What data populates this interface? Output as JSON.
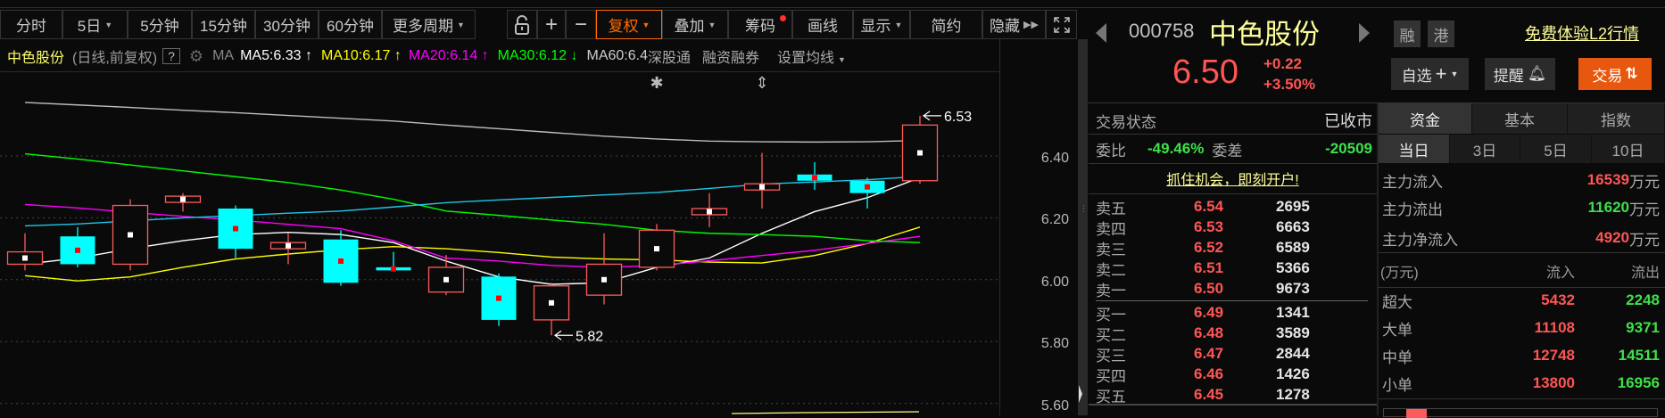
{
  "toolbar": {
    "periods": [
      "分时",
      "5日",
      "5分钟",
      "15分钟",
      "30分钟",
      "60分钟",
      "更多周期"
    ],
    "tools": {
      "plus": "+",
      "minus": "−",
      "fuquan": "复权",
      "overlay": "叠加",
      "chips": "筹码",
      "draw": "画线",
      "display": "显示",
      "simple": "简约",
      "hide": "隐藏"
    }
  },
  "legend": {
    "name": "中色股份",
    "mode": "(日线,前复权)",
    "help": "?",
    "ma": "MA",
    "ma5": "MA5:6.33 ↑",
    "ma10": "MA10:6.17 ↑",
    "ma20": "MA20:6.14 ↑",
    "ma30": "MA30:6.12 ↓",
    "ma60": "MA60:6.4",
    "sgt": "深股通",
    "margin": "融资融券",
    "set_ma": "设置均线"
  },
  "colors": {
    "up": "#ff5a5a",
    "down": "#00ffff",
    "ma5": "#ffffff",
    "ma10": "#ffff00",
    "ma20": "#ff00ff",
    "ma30": "#00ff00",
    "ma60": "#bdbdbd",
    "extra": "#1ec8e8",
    "accent": "#ff6a00",
    "trade": "#e8570e"
  },
  "chart_data": {
    "type": "candlestick",
    "yticks": [
      "6.40",
      "6.20",
      "6.00",
      "5.80",
      "5.60"
    ],
    "ylim": [
      5.56,
      6.62
    ],
    "ohlc": [
      [
        6.05,
        6.15,
        6.03,
        6.09
      ],
      [
        6.14,
        6.17,
        6.04,
        6.05
      ],
      [
        6.05,
        6.26,
        6.03,
        6.24
      ],
      [
        6.25,
        6.28,
        6.22,
        6.27
      ],
      [
        6.23,
        6.24,
        6.07,
        6.1
      ],
      [
        6.1,
        6.15,
        6.05,
        6.12
      ],
      [
        6.13,
        6.16,
        5.98,
        5.99
      ],
      [
        6.04,
        6.09,
        6.03,
        6.03
      ],
      [
        5.96,
        6.08,
        5.95,
        6.04
      ],
      [
        6.01,
        6.02,
        5.85,
        5.87
      ],
      [
        5.87,
        5.99,
        5.82,
        5.98
      ],
      [
        5.95,
        6.15,
        5.92,
        6.05
      ],
      [
        6.04,
        6.18,
        6.03,
        6.16
      ],
      [
        6.21,
        6.28,
        6.17,
        6.23
      ],
      [
        6.29,
        6.41,
        6.23,
        6.31
      ],
      [
        6.34,
        6.38,
        6.29,
        6.32
      ],
      [
        6.32,
        6.33,
        6.23,
        6.28
      ],
      [
        6.32,
        6.53,
        6.31,
        6.5
      ]
    ],
    "series": [
      {
        "name": "MA5",
        "key": "ma5",
        "values": [
          6.05,
          6.07,
          6.1,
          6.126,
          6.146,
          6.153,
          6.146,
          6.12,
          6.06,
          6.009,
          5.985,
          5.99,
          6.04,
          6.07,
          6.15,
          6.22,
          6.265,
          6.33
        ]
      },
      {
        "name": "MA10",
        "key": "ma10",
        "values": [
          6.013,
          5.996,
          6.009,
          6.04,
          6.067,
          6.083,
          6.097,
          6.107,
          6.1,
          6.088,
          6.073,
          6.067,
          6.064,
          6.057,
          6.054,
          6.078,
          6.117,
          6.17
        ]
      },
      {
        "name": "MA20",
        "key": "ma20",
        "values": [
          6.243,
          6.232,
          6.218,
          6.205,
          6.193,
          6.179,
          6.165,
          6.126,
          6.07,
          6.06,
          6.046,
          6.04,
          6.046,
          6.061,
          6.078,
          6.095,
          6.117,
          6.14
        ]
      },
      {
        "name": "MA30",
        "key": "ma30",
        "values": [
          6.407,
          6.39,
          6.371,
          6.352,
          6.333,
          6.314,
          6.29,
          6.26,
          6.222,
          6.208,
          6.193,
          6.179,
          6.16,
          6.15,
          6.146,
          6.14,
          6.126,
          6.12
        ]
      },
      {
        "name": "MA60",
        "key": "ma60",
        "values": [
          6.573,
          6.565,
          6.557,
          6.548,
          6.54,
          6.531,
          6.522,
          6.513,
          6.5,
          6.488,
          6.476,
          6.464,
          6.455,
          6.448,
          6.446,
          6.445,
          6.446,
          6.45
        ]
      },
      {
        "key": "extra",
        "values": [
          6.174,
          6.18,
          6.19,
          6.2,
          6.207,
          6.215,
          6.222,
          6.235,
          6.249,
          6.258,
          6.266,
          6.274,
          6.282,
          6.295,
          6.309,
          6.316,
          6.323,
          6.334
        ]
      }
    ],
    "annotations": {
      "high": "6.53",
      "low": "5.82",
      "high_price": 6.53,
      "low_price": 5.82,
      "high_index": 17,
      "low_index": 10
    },
    "markers": [
      {
        "index": 12,
        "symbol": "✱"
      },
      {
        "index": 14,
        "symbol": "⇕"
      }
    ]
  },
  "quote": {
    "code": "000758",
    "name": "中色股份",
    "tag_margin": "融",
    "tag_hk": "港",
    "l2_link": "免费体验L2行情",
    "price": "6.50",
    "change": "+0.22",
    "change_pct": "+3.50%",
    "watch": "自选",
    "alert": "提醒",
    "trade": "交易"
  },
  "orderbook": {
    "status_label": "交易状态",
    "status": "已收市",
    "ratio_label": "委比",
    "ratio": "-49.46%",
    "diff_label": "委差",
    "diff": "-20509",
    "promo": "抓住机会，即刻开户!",
    "asks": [
      {
        "l": "卖五",
        "p": "6.54",
        "v": "2695"
      },
      {
        "l": "卖四",
        "p": "6.53",
        "v": "6663"
      },
      {
        "l": "卖三",
        "p": "6.52",
        "v": "6589"
      },
      {
        "l": "卖二",
        "p": "6.51",
        "v": "5366"
      },
      {
        "l": "卖一",
        "p": "6.50",
        "v": "9673"
      }
    ],
    "bids": [
      {
        "l": "买一",
        "p": "6.49",
        "v": "1341"
      },
      {
        "l": "买二",
        "p": "6.48",
        "v": "3589"
      },
      {
        "l": "买三",
        "p": "6.47",
        "v": "2844"
      },
      {
        "l": "买四",
        "p": "6.46",
        "v": "1426"
      },
      {
        "l": "买五",
        "p": "6.45",
        "v": "1278"
      }
    ]
  },
  "funds": {
    "tabs": [
      "资金",
      "基本",
      "指数"
    ],
    "periods": [
      "当日",
      "3日",
      "5日",
      "10日"
    ],
    "main": [
      {
        "l": "主力流入",
        "v": "16539",
        "u": "万元",
        "c": "red"
      },
      {
        "l": "主力流出",
        "v": "11620",
        "u": "万元",
        "c": "grn"
      },
      {
        "l": "主力净流入",
        "v": "4920",
        "u": "万元",
        "c": "red"
      }
    ],
    "head": [
      "(万元)",
      "流入",
      "流出"
    ],
    "rows": [
      {
        "l": "超大",
        "in": "5432",
        "out": "2248"
      },
      {
        "l": "大单",
        "in": "11108",
        "out": "9371"
      },
      {
        "l": "中单",
        "in": "12748",
        "out": "14511"
      },
      {
        "l": "小单",
        "in": "13800",
        "out": "16956"
      }
    ]
  }
}
